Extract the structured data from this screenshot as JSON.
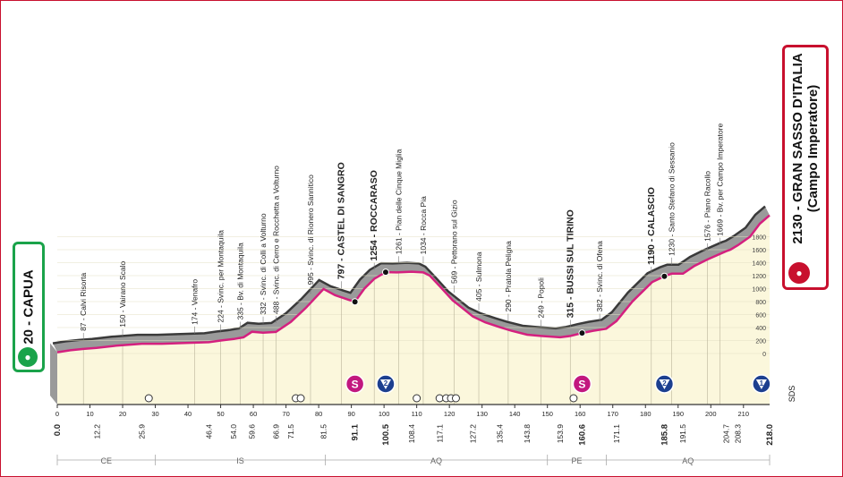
{
  "chart_data": {
    "type": "area",
    "title": "",
    "x_ticks": [
      0,
      10,
      20,
      30,
      40,
      50,
      60,
      70,
      80,
      90,
      100,
      110,
      120,
      130,
      140,
      150,
      160,
      170,
      180,
      190,
      200,
      210
    ],
    "y_ticks": [
      0,
      200,
      400,
      600,
      800,
      1000,
      1200,
      1400,
      1600,
      1800
    ],
    "xlim": [
      0,
      218
    ],
    "ylim": [
      0,
      2200
    ],
    "profile": {
      "x": [
        0,
        4,
        8,
        12,
        18,
        25.9,
        32,
        38,
        46.4,
        50,
        54,
        57,
        59.6,
        63,
        66.9,
        71.5,
        76,
        81.5,
        85,
        89,
        91.1,
        94,
        97,
        100.5,
        104,
        108.4,
        112,
        114,
        117.1,
        121,
        124,
        127.2,
        131,
        135.4,
        139,
        143.8,
        148,
        153.9,
        157,
        160.6,
        164,
        168,
        171.1,
        176,
        182,
        185.8,
        188,
        191.5,
        195,
        199,
        204.7,
        206,
        208.3,
        212,
        215,
        218
      ],
      "y": [
        20,
        50,
        70,
        87,
        120,
        150,
        150,
        160,
        174,
        200,
        224,
        250,
        335,
        320,
        332,
        488,
        700,
        995,
        900,
        830,
        797,
        1000,
        1150,
        1254,
        1250,
        1261,
        1250,
        1200,
        1034,
        820,
        700,
        569,
        480,
        405,
        350,
        290,
        270,
        249,
        270,
        315,
        350,
        382,
        500,
        800,
        1100,
        1190,
        1230,
        1230,
        1350,
        1450,
        1576,
        1600,
        1669,
        1800,
        2000,
        2130
      ]
    },
    "places": [
      {
        "km": 0,
        "label": "20 - CAPUA",
        "bold": true,
        "side": "start"
      },
      {
        "km": 8,
        "label": "87 - Calvi Risorta"
      },
      {
        "km": 20,
        "label": "150 - Vairano Scalo"
      },
      {
        "km": 42,
        "label": "174 - Venafro"
      },
      {
        "km": 50,
        "label": "224 - Svinc. per Montaquila"
      },
      {
        "km": 56,
        "label": "335 - Bv. di Montaquila"
      },
      {
        "km": 63,
        "label": "332 - Svinc. di Colli a Volturno"
      },
      {
        "km": 66.9,
        "label": "488 - Svinc. di Cerro e Rocchetta a Volturno"
      },
      {
        "km": 77.5,
        "label": "995 - Svinc. di Rionero Sannitico"
      },
      {
        "km": 87,
        "label": "797 - CASTEL DI SANGRO",
        "bold": true
      },
      {
        "km": 97,
        "label": "1254 - ROCCARASO",
        "bold": true
      },
      {
        "km": 104.5,
        "label": "1261 - Pian delle Cinque Miglia"
      },
      {
        "km": 112,
        "label": "1034 - Rocca Pia"
      },
      {
        "km": 121.5,
        "label": "569 - Pettorano sul Gizio"
      },
      {
        "km": 129,
        "label": "405 - Sulmona"
      },
      {
        "km": 138,
        "label": "290 - Pratola Peligna"
      },
      {
        "km": 148,
        "label": "249 - Popoli"
      },
      {
        "km": 157,
        "label": "315 - BUSSI SUL TIRINO",
        "bold": true
      },
      {
        "km": 166,
        "label": "382 - Svinc. di Ofena"
      },
      {
        "km": 181.8,
        "label": "1190 - CALASCIO",
        "bold": true
      },
      {
        "km": 188,
        "label": "1230 - Santo Stefano di Sessanio"
      },
      {
        "km": 199,
        "label": "1576 - Piano Racollo"
      },
      {
        "km": 202.8,
        "label": "1669 - Bv. per Campo Imperatore"
      }
    ],
    "km_labels": [
      {
        "km": 0,
        "label": "0.0",
        "bold": true
      },
      {
        "km": 12.2,
        "label": "12.2"
      },
      {
        "km": 25.9,
        "label": "25.9"
      },
      {
        "km": 46.4,
        "label": "46.4"
      },
      {
        "km": 54.0,
        "label": "54.0"
      },
      {
        "km": 59.6,
        "label": "59.6"
      },
      {
        "km": 66.9,
        "label": "66.9"
      },
      {
        "km": 71.5,
        "label": "71.5"
      },
      {
        "km": 81.5,
        "label": "81.5"
      },
      {
        "km": 91.1,
        "label": "91.1",
        "bold": true
      },
      {
        "km": 100.5,
        "label": "100.5",
        "bold": true
      },
      {
        "km": 108.4,
        "label": "108.4"
      },
      {
        "km": 117.1,
        "label": "117.1"
      },
      {
        "km": 127.2,
        "label": "127.2"
      },
      {
        "km": 135.4,
        "label": "135.4"
      },
      {
        "km": 143.8,
        "label": "143.8"
      },
      {
        "km": 153.9,
        "label": "153.9"
      },
      {
        "km": 160.6,
        "label": "160.6",
        "bold": true
      },
      {
        "km": 171.1,
        "label": "171.1"
      },
      {
        "km": 185.8,
        "label": "185.8",
        "bold": true
      },
      {
        "km": 191.5,
        "label": "191.5"
      },
      {
        "km": 204.7,
        "label": "204.7"
      },
      {
        "km": 208.3,
        "label": "208.3"
      },
      {
        "km": 218.0,
        "label": "218.0",
        "bold": true
      }
    ],
    "dots": [
      91.1,
      100.5,
      160.6,
      185.8
    ],
    "sprints": [
      {
        "km": 91.1,
        "label": "S",
        "color": "#c2187f"
      },
      {
        "km": 160.6,
        "label": "S",
        "color": "#c2187f"
      }
    ],
    "kom": [
      {
        "km": 100.5,
        "label": "2",
        "color": "#1c3f8f"
      },
      {
        "km": 185.8,
        "label": "2",
        "color": "#1c3f8f"
      },
      {
        "km": 215.5,
        "label": "1",
        "color": "#1c3f8f"
      }
    ],
    "tunnels": [
      28,
      73,
      74.5,
      110,
      117,
      119,
      120.5,
      122,
      158
    ],
    "regions": [
      {
        "from": 0,
        "to": 30,
        "label": "CE"
      },
      {
        "from": 30,
        "to": 82,
        "label": "IS"
      },
      {
        "from": 82,
        "to": 150,
        "label": "AQ"
      },
      {
        "from": 150,
        "to": 168,
        "label": "PE"
      },
      {
        "from": 168,
        "to": 218,
        "label": "AQ"
      }
    ],
    "sds_label": "SDS",
    "colors": {
      "relief": "#9a9a9a",
      "relief_dark": "#3a3a3a",
      "line": "#d4207f",
      "fill": "#fbf7dc",
      "start": "#1aa34a",
      "finish": "#c8102e"
    }
  },
  "start": {
    "label": "20 - CAPUA",
    "icon": "cyclist-icon"
  },
  "finish": {
    "line1": "2130 - GRAN SASSO D'ITALIA",
    "line2": "(Campo Imperatore)",
    "icon": "finish-icon"
  }
}
